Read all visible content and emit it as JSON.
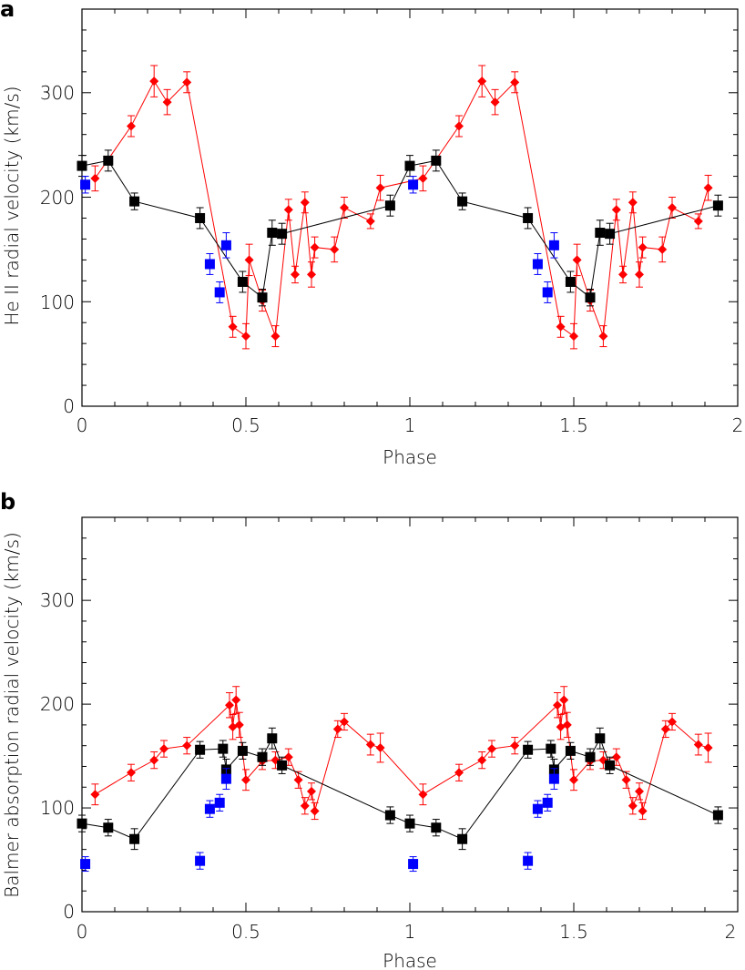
{
  "chart_data": [
    {
      "panel_label": "a",
      "type": "scatter",
      "xlabel": "Phase",
      "ylabel": "He II radial velocity (km/s)",
      "xlim": [
        0,
        2
      ],
      "ylim": [
        0,
        380
      ],
      "xticks": [
        0,
        0.5,
        1,
        1.5,
        2
      ],
      "xtick_labels": [
        "0",
        "0.5",
        "1",
        "1.5",
        "2"
      ],
      "yticks": [
        0,
        100,
        200,
        300
      ],
      "ytick_labels": [
        "0",
        "100",
        "200",
        "300"
      ],
      "series": [
        {
          "color": "#ff0000",
          "marker": "diamond",
          "connected": true,
          "points": [
            [
              0.04,
              218,
              12
            ],
            [
              0.15,
              268,
              10
            ],
            [
              0.22,
              311,
              15
            ],
            [
              0.26,
              291,
              12
            ],
            [
              0.32,
              310,
              10
            ],
            [
              0.46,
              76,
              10
            ],
            [
              0.5,
              67,
              12
            ],
            [
              0.51,
              140,
              15
            ],
            [
              0.55,
              101,
              10
            ],
            [
              0.59,
              67,
              10
            ],
            [
              0.63,
              188,
              10
            ],
            [
              0.65,
              126,
              8
            ],
            [
              0.68,
              195,
              10
            ],
            [
              0.7,
              126,
              12
            ],
            [
              0.71,
              152,
              10
            ],
            [
              0.77,
              150,
              12
            ],
            [
              0.8,
              190,
              10
            ],
            [
              0.88,
              177,
              7
            ],
            [
              0.91,
              209,
              12
            ],
            [
              1.04,
              218,
              12
            ],
            [
              1.15,
              268,
              10
            ],
            [
              1.22,
              311,
              15
            ],
            [
              1.26,
              291,
              12
            ],
            [
              1.32,
              310,
              10
            ],
            [
              1.46,
              76,
              10
            ],
            [
              1.5,
              67,
              12
            ],
            [
              1.51,
              140,
              15
            ],
            [
              1.55,
              101,
              10
            ],
            [
              1.59,
              67,
              10
            ],
            [
              1.63,
              188,
              10
            ],
            [
              1.65,
              126,
              8
            ],
            [
              1.68,
              195,
              10
            ],
            [
              1.7,
              126,
              12
            ],
            [
              1.71,
              152,
              10
            ],
            [
              1.77,
              150,
              12
            ],
            [
              1.8,
              190,
              10
            ],
            [
              1.88,
              177,
              7
            ],
            [
              1.91,
              209,
              12
            ]
          ]
        },
        {
          "color": "#000000",
          "marker": "square",
          "connected": true,
          "points": [
            [
              0.0,
              230,
              10
            ],
            [
              0.08,
              235,
              10
            ],
            [
              0.16,
              196,
              8
            ],
            [
              0.36,
              180,
              10
            ],
            [
              0.49,
              119,
              10
            ],
            [
              0.55,
              104,
              8
            ],
            [
              0.58,
              166,
              12
            ],
            [
              0.61,
              165,
              10
            ],
            [
              0.94,
              192,
              10
            ],
            [
              1.0,
              230,
              10
            ],
            [
              1.08,
              235,
              10
            ],
            [
              1.16,
              196,
              8
            ],
            [
              1.36,
              180,
              10
            ],
            [
              1.49,
              119,
              10
            ],
            [
              1.55,
              104,
              8
            ],
            [
              1.58,
              166,
              12
            ],
            [
              1.61,
              165,
              10
            ],
            [
              1.94,
              192,
              10
            ]
          ]
        },
        {
          "color": "#0000ff",
          "marker": "square",
          "connected": false,
          "points": [
            [
              0.01,
              212,
              8
            ],
            [
              0.39,
              136,
              10
            ],
            [
              0.42,
              109,
              10
            ],
            [
              0.44,
              154,
              12
            ],
            [
              1.01,
              212,
              8
            ],
            [
              1.39,
              136,
              10
            ],
            [
              1.42,
              109,
              10
            ],
            [
              1.44,
              154,
              12
            ]
          ]
        }
      ]
    },
    {
      "panel_label": "b",
      "type": "scatter",
      "xlabel": "Phase",
      "ylabel": "Balmer absorption radial velocity (km/s)",
      "xlim": [
        0,
        2
      ],
      "ylim": [
        0,
        380
      ],
      "xticks": [
        0,
        0.5,
        1,
        1.5,
        2
      ],
      "xtick_labels": [
        "0",
        "0.5",
        "1",
        "1.5",
        "2"
      ],
      "yticks": [
        0,
        100,
        200,
        300
      ],
      "ytick_labels": [
        "0",
        "100",
        "200",
        "300"
      ],
      "series": [
        {
          "color": "#ff0000",
          "marker": "diamond",
          "connected": true,
          "points": [
            [
              0.04,
              113,
              10
            ],
            [
              0.15,
              134,
              8
            ],
            [
              0.22,
              146,
              8
            ],
            [
              0.25,
              157,
              8
            ],
            [
              0.32,
              160,
              8
            ],
            [
              0.45,
              199,
              12
            ],
            [
              0.46,
              178,
              12
            ],
            [
              0.47,
              204,
              13
            ],
            [
              0.48,
              180,
              12
            ],
            [
              0.5,
              127,
              10
            ],
            [
              0.55,
              145,
              8
            ],
            [
              0.59,
              146,
              8
            ],
            [
              0.63,
              149,
              8
            ],
            [
              0.66,
              127,
              8
            ],
            [
              0.68,
              102,
              8
            ],
            [
              0.7,
              116,
              8
            ],
            [
              0.71,
              97,
              8
            ],
            [
              0.78,
              176,
              8
            ],
            [
              0.8,
              183,
              8
            ],
            [
              0.88,
              161,
              10
            ],
            [
              0.91,
              158,
              14
            ],
            [
              1.04,
              113,
              10
            ],
            [
              1.15,
              134,
              8
            ],
            [
              1.22,
              146,
              8
            ],
            [
              1.25,
              157,
              8
            ],
            [
              1.32,
              160,
              8
            ],
            [
              1.45,
              199,
              12
            ],
            [
              1.46,
              178,
              12
            ],
            [
              1.47,
              204,
              13
            ],
            [
              1.48,
              180,
              12
            ],
            [
              1.5,
              127,
              10
            ],
            [
              1.55,
              145,
              8
            ],
            [
              1.59,
              146,
              8
            ],
            [
              1.63,
              149,
              8
            ],
            [
              1.66,
              127,
              8
            ],
            [
              1.68,
              102,
              8
            ],
            [
              1.7,
              116,
              8
            ],
            [
              1.71,
              97,
              8
            ],
            [
              1.78,
              176,
              8
            ],
            [
              1.8,
              183,
              8
            ],
            [
              1.88,
              161,
              10
            ],
            [
              1.91,
              158,
              14
            ]
          ]
        },
        {
          "color": "#000000",
          "marker": "square",
          "connected": true,
          "points": [
            [
              0.0,
              85,
              8
            ],
            [
              0.08,
              81,
              8
            ],
            [
              0.16,
              70,
              10
            ],
            [
              0.36,
              156,
              8
            ],
            [
              0.43,
              157,
              8
            ],
            [
              0.44,
              137,
              10
            ],
            [
              0.49,
              155,
              8
            ],
            [
              0.55,
              149,
              8
            ],
            [
              0.58,
              167,
              10
            ],
            [
              0.61,
              141,
              8
            ],
            [
              0.94,
              93,
              8
            ],
            [
              1.0,
              85,
              8
            ],
            [
              1.08,
              81,
              8
            ],
            [
              1.16,
              70,
              10
            ],
            [
              1.36,
              156,
              8
            ],
            [
              1.43,
              157,
              8
            ],
            [
              1.44,
              137,
              10
            ],
            [
              1.49,
              155,
              8
            ],
            [
              1.55,
              149,
              8
            ],
            [
              1.58,
              167,
              10
            ],
            [
              1.61,
              141,
              8
            ],
            [
              1.94,
              93,
              8
            ]
          ]
        },
        {
          "color": "#0000ff",
          "marker": "square",
          "connected": false,
          "points": [
            [
              0.01,
              46,
              7
            ],
            [
              0.36,
              49,
              8
            ],
            [
              0.39,
              99,
              8
            ],
            [
              0.42,
              105,
              8
            ],
            [
              0.44,
              128,
              10
            ],
            [
              1.01,
              46,
              7
            ],
            [
              1.36,
              49,
              8
            ],
            [
              1.39,
              99,
              8
            ],
            [
              1.42,
              105,
              8
            ],
            [
              1.44,
              128,
              10
            ]
          ]
        }
      ]
    }
  ]
}
